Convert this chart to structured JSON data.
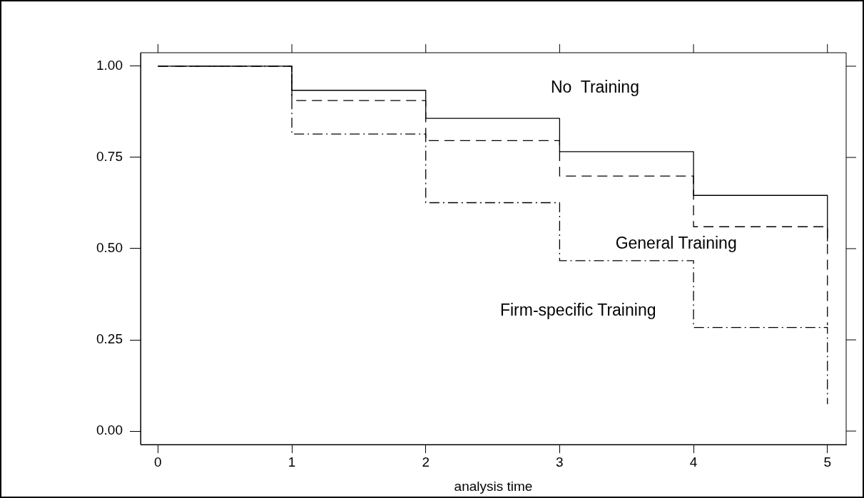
{
  "chart_data": {
    "type": "step",
    "xlabel": "analysis time",
    "x": [
      0,
      1,
      2,
      3,
      4,
      5
    ],
    "series": [
      {
        "name": "No  Training",
        "color": "#000000",
        "line_style": "solid",
        "values": [
          1,
          0.934,
          0.857,
          0.766,
          0.646,
          0.52
        ]
      },
      {
        "name": "General Training",
        "color": "#000000",
        "line_style": "dashed",
        "values": [
          1,
          0.906,
          0.796,
          0.699,
          0.56,
          0.29
        ]
      },
      {
        "name": "Firm-specific Training",
        "color": "#000000",
        "line_style": "dashdot",
        "values": [
          1,
          0.814,
          0.626,
          0.467,
          0.284,
          0.074
        ]
      }
    ],
    "xlim": [
      -0.13,
      5.14
    ],
    "ylim": [
      -0.037,
      1.037
    ],
    "xticks": [
      0,
      1,
      2,
      3,
      4,
      5
    ],
    "yticks": [
      {
        "value": 0,
        "label": "0.00"
      },
      {
        "value": 0.25,
        "label": "0.25"
      },
      {
        "value": 0.5,
        "label": "0.50"
      },
      {
        "value": 0.75,
        "label": "0.75"
      },
      {
        "value": 1,
        "label": "1.00"
      }
    ],
    "grid": false,
    "legend": false,
    "marker": "none"
  }
}
